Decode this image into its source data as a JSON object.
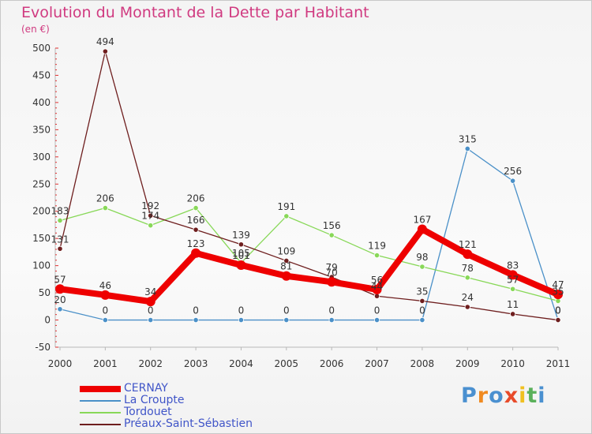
{
  "chart_data": {
    "type": "line",
    "title": "Evolution du Montant de la Dette par Habitant",
    "subtitle": "(en €)",
    "xlabel": "",
    "ylabel": "",
    "ylim": [
      -50,
      500
    ],
    "yticks": [
      -50,
      0,
      50,
      100,
      150,
      200,
      250,
      300,
      350,
      400,
      450,
      500
    ],
    "categories": [
      "2000",
      "2001",
      "2002",
      "2003",
      "2004",
      "2005",
      "2006",
      "2007",
      "2008",
      "2009",
      "2010",
      "2011"
    ],
    "grid": false,
    "legend_position": "bottom-left",
    "series": [
      {
        "name": "CERNAY",
        "color": "#ee0000",
        "values": [
          57,
          46,
          34,
          123,
          101,
          81,
          70,
          56,
          167,
          121,
          83,
          47
        ]
      },
      {
        "name": "La Croupte",
        "color": "#4a90c8",
        "values": [
          20,
          0,
          0,
          0,
          0,
          0,
          0,
          0,
          0,
          315,
          256,
          0
        ]
      },
      {
        "name": "Tordouet",
        "color": "#88d858",
        "values": [
          183,
          206,
          174,
          206,
          105,
          191,
          156,
          119,
          98,
          78,
          57,
          35
        ]
      },
      {
        "name": "Préaux-Saint-Sébastien",
        "color": "#6e1e1e",
        "values": [
          131,
          494,
          192,
          166,
          139,
          109,
          79,
          44,
          35,
          24,
          11,
          0
        ]
      }
    ]
  },
  "branding": {
    "logo_text": "Proxiti",
    "logo_colors": [
      "#4a90d0",
      "#f08a20",
      "#4a90d0",
      "#e84b2a",
      "#f0c020",
      "#5ab05a",
      "#4a90d0"
    ]
  }
}
